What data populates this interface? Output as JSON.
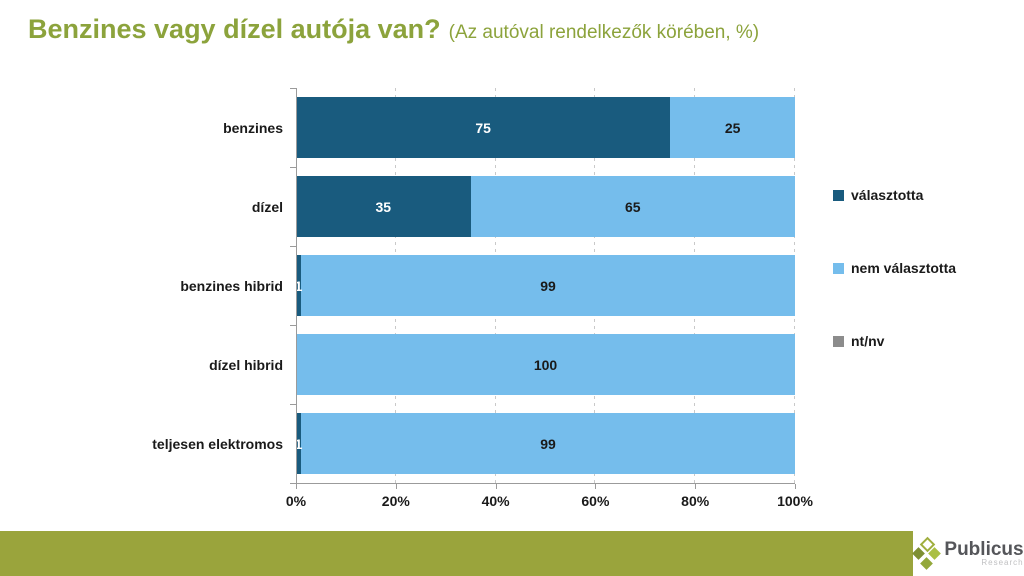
{
  "title": {
    "main": "Benzines vagy dízel autója van?",
    "subtitle": "(Az autóval rendelkezők körében, %)"
  },
  "chart_data": {
    "type": "bar",
    "orientation": "horizontal",
    "stacked": true,
    "title": "Benzines vagy dízel autója van? (Az autóval rendelkezők körében, %)",
    "categories": [
      "benzines",
      "dízel",
      "benzines hibrid",
      "dízel hibrid",
      "teljesen elektromos"
    ],
    "series": [
      {
        "name": "választotta",
        "color": "#195b7e",
        "label_color": "#ffffff",
        "values": [
          75,
          35,
          1,
          0,
          1
        ]
      },
      {
        "name": "nem választotta",
        "color": "#75bdec",
        "label_color": "#1a1a1a",
        "values": [
          25,
          65,
          99,
          100,
          99
        ]
      },
      {
        "name": "nt/nv",
        "color": "#8c8c8c",
        "label_color": "#ffffff",
        "values": [
          0,
          0,
          0,
          0,
          0
        ]
      }
    ],
    "xlim": [
      0,
      100
    ],
    "x_ticks": [
      "0%",
      "20%",
      "40%",
      "60%",
      "80%",
      "100%"
    ],
    "unit": "%",
    "grid": "vertical-dashed",
    "legend_position": "right"
  },
  "footer": {
    "brand": "Publicus",
    "brand_sub": "Research"
  },
  "colors": {
    "title_green": "#8ca33c",
    "footer_olive": "#9aa43c",
    "series_dark_blue": "#195b7e",
    "series_light_blue": "#75bdec",
    "series_gray": "#8c8c8c",
    "axis_gray": "#9b9b9b",
    "grid_gray": "#c9c9c9"
  }
}
